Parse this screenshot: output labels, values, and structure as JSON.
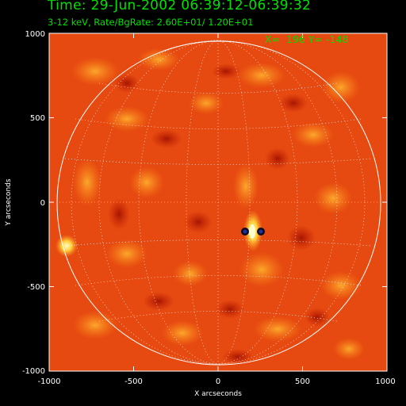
{
  "header": {
    "title": "Time: 29-Jun-2002 06:39:12-06:39:32",
    "subtitle": "3-12 keV, Rate/BgRate:  2.60E+01/  1.20E+01"
  },
  "readout": {
    "text": "X=  196 Y= -148"
  },
  "axes": {
    "x_label": "X arcseconds",
    "y_label": "Y arcseconds",
    "x_ticks": [
      "-1000",
      "-500",
      "0",
      "500",
      "1000"
    ],
    "y_ticks": [
      "1000",
      "500",
      "0",
      "-500",
      "-1000"
    ],
    "x_range": [
      -1000,
      1000
    ],
    "y_range": [
      -1000,
      1000
    ]
  },
  "colors": {
    "text_green": "#00e000",
    "background": "#000000",
    "map_base": "#e64a10",
    "map_high": "#ffd23c",
    "map_low": "#b81800",
    "limb": "#ffffff"
  }
}
